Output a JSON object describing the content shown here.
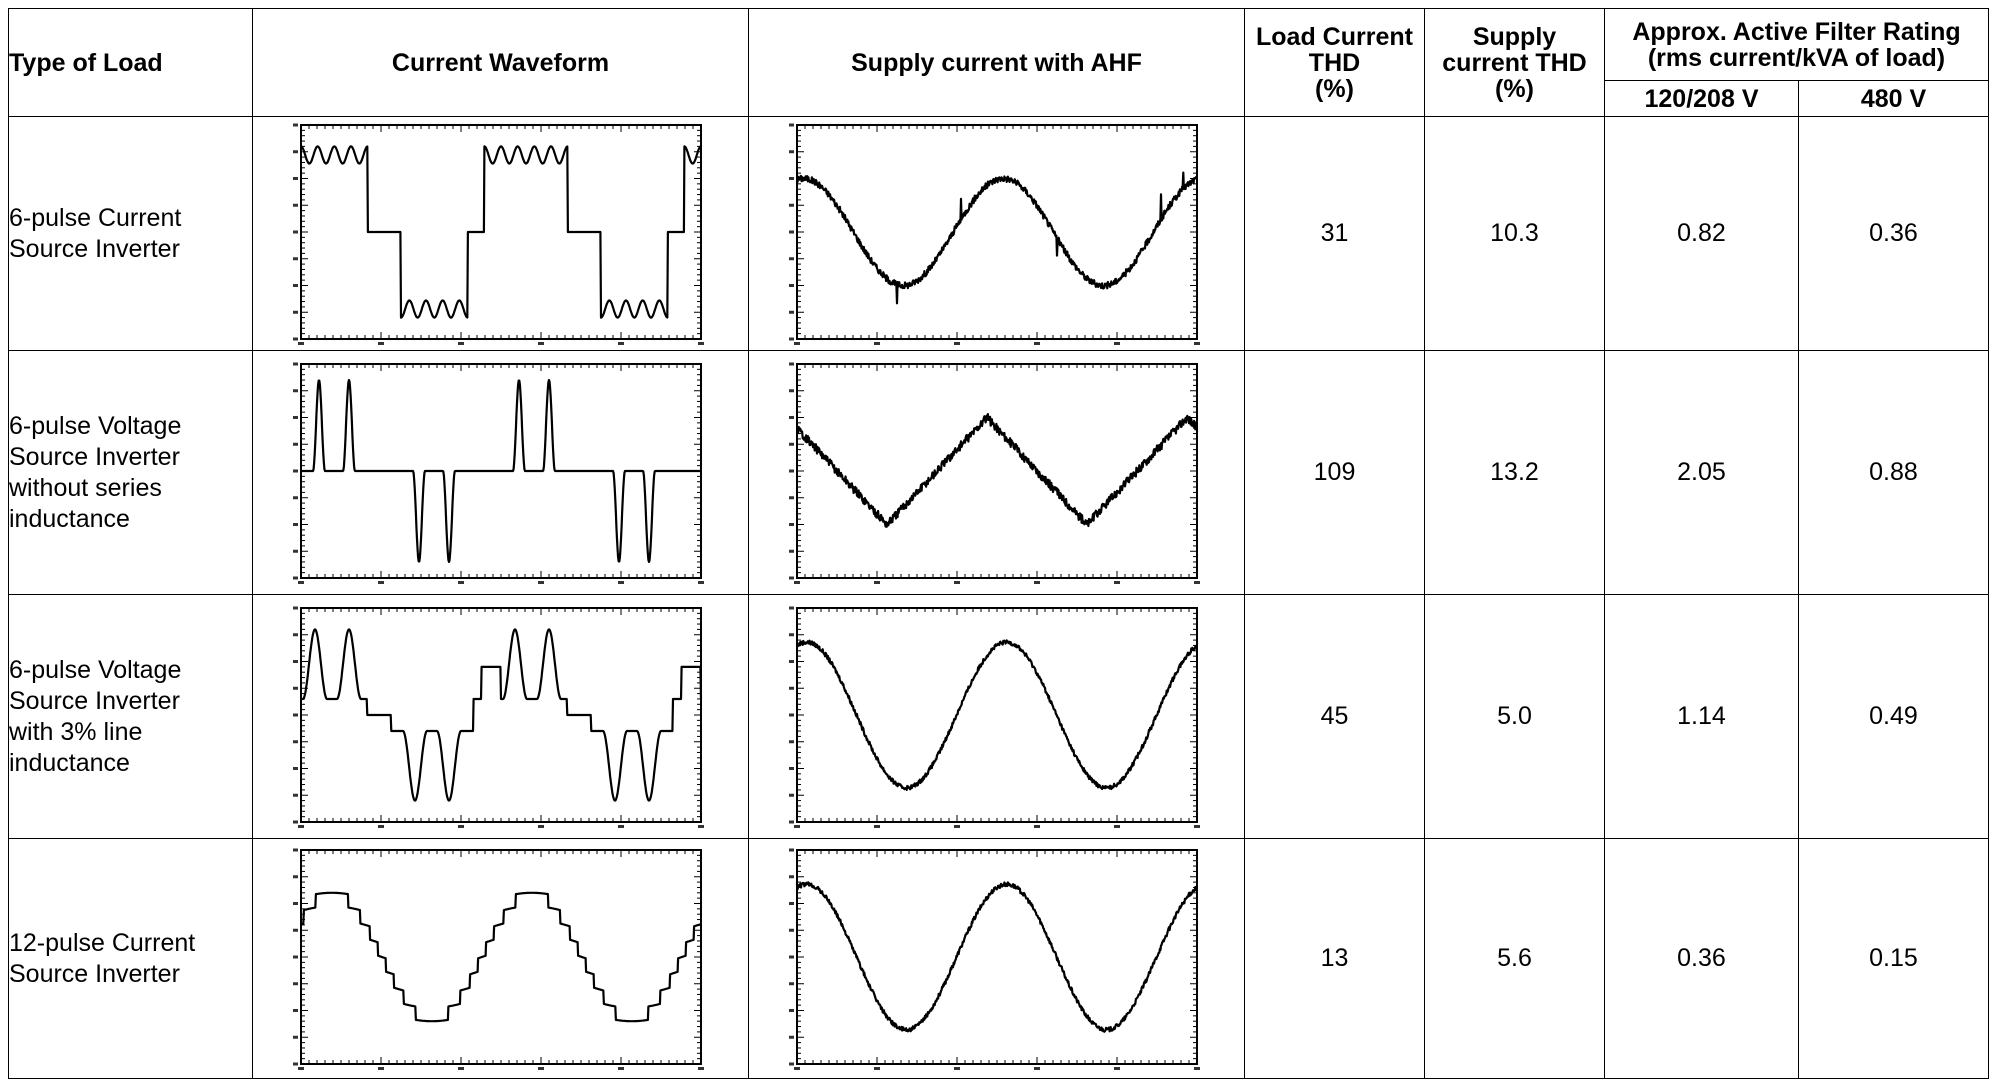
{
  "headers": {
    "type_of_load": "Type of Load",
    "current_waveform": "Current Waveform",
    "supply_current_ahf": "Supply current with AHF",
    "load_thd_l1": "Load Current",
    "load_thd_l2": "THD",
    "load_thd_l3": "(%)",
    "supply_thd_l1": "Supply",
    "supply_thd_l2": "current THD",
    "supply_thd_l3": "(%)",
    "rating_l1": "Approx. Active Filter Rating",
    "rating_l2": "(rms current/kVA of load)",
    "v120": "120/208 V",
    "v480": "480 V"
  },
  "rows": [
    {
      "type_lines": [
        "6-pulse Current",
        "Source Inverter"
      ],
      "load_waveform": "6-pulse-csi",
      "supply_waveform": "sine-noisy-spikes",
      "load_thd": "31",
      "supply_thd": "10.3",
      "rating_120": "0.82",
      "rating_480": "0.36"
    },
    {
      "type_lines": [
        "6-pulse Voltage",
        "Source Inverter",
        "without series",
        "inductance"
      ],
      "load_waveform": "6-pulse-vsi-no-inductance",
      "supply_waveform": "triangle-noisy",
      "load_thd": "109",
      "supply_thd": "13.2",
      "rating_120": "2.05",
      "rating_480": "0.88"
    },
    {
      "type_lines": [
        "6-pulse Voltage",
        "Source Inverter",
        "with 3% line",
        "inductance"
      ],
      "load_waveform": "6-pulse-vsi-3pct",
      "supply_waveform": "sine-smooth",
      "load_thd": "45",
      "supply_thd": "5.0",
      "rating_120": "1.14",
      "rating_480": "0.49"
    },
    {
      "type_lines": [
        "12-pulse Current",
        "Source Inverter"
      ],
      "load_waveform": "12-pulse-csi",
      "supply_waveform": "sine-smooth",
      "load_thd": "13",
      "supply_thd": "5.6",
      "rating_120": "0.36",
      "rating_480": "0.15"
    }
  ]
}
